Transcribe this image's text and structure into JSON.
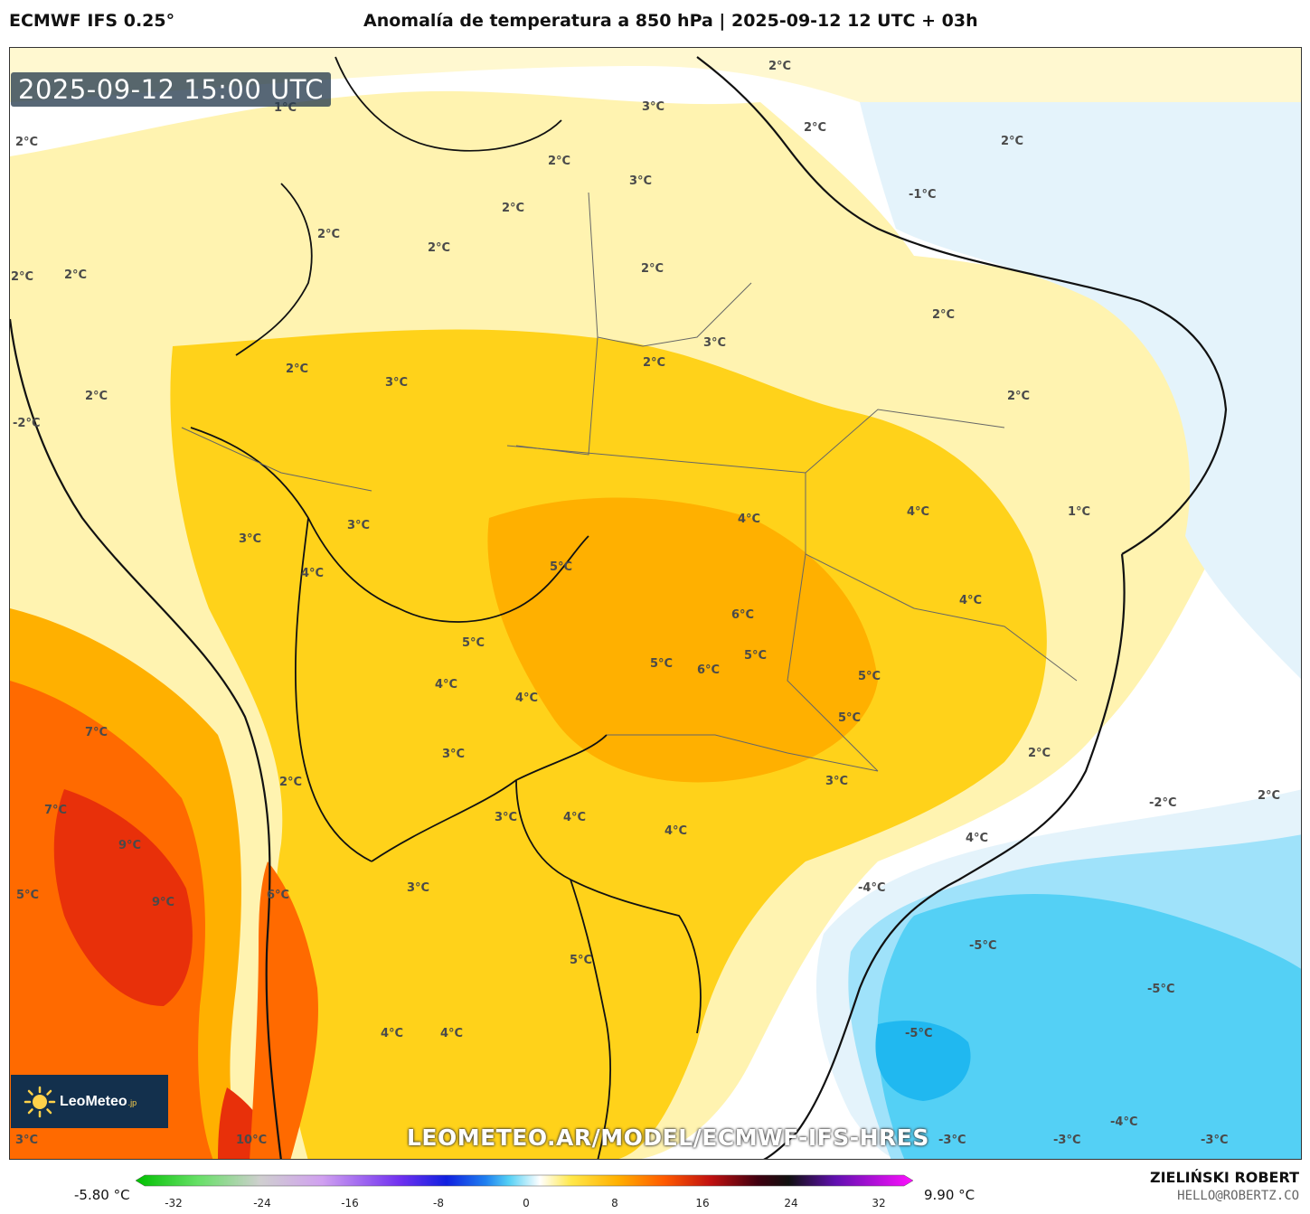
{
  "header": {
    "model": "ECMWF IFS 0.25°",
    "title": "Anomalía de temperatura a 850 hPa | 2025-09-12 12 UTC + 03h"
  },
  "map": {
    "timestamp": "2025-09-12 15:00 UTC",
    "watermark": "LEOMETEO.AR/MODEL/ECMWF-IFS-HRES",
    "logo_text": "LeoMeteo",
    "logo_suffix": ".jp",
    "region": "South America (Brazil centered)",
    "labels": [
      "1°C",
      "2°C",
      "2°C",
      "2°C",
      "2°C",
      "3°C",
      "3°C",
      "2°C",
      "2°C",
      "2°C",
      "2°C",
      "2°C",
      "-1°C",
      "2°C",
      "3°C",
      "2°C",
      "2°C",
      "2°C",
      "2°C",
      "3°C",
      "-2°C",
      "2°C",
      "2°C",
      "1°C",
      "4°C",
      "3°C",
      "3°C",
      "4°C",
      "5°C",
      "4°C",
      "4°C",
      "6°C",
      "5°C",
      "5°C",
      "6°C",
      "5°C",
      "5°C",
      "4°C",
      "4°C",
      "5°C",
      "2°C",
      "3°C",
      "2°C",
      "3°C",
      "-2°C",
      "2°C",
      "7°C",
      "7°C",
      "9°C",
      "9°C",
      "5°C",
      "6°C",
      "3°C",
      "3°C",
      "4°C",
      "4°C",
      "4°C",
      "-4°C",
      "-5°C",
      "-5°C",
      "-5°C",
      "-4°C",
      "4°C",
      "4°C",
      "5°C",
      "10°C",
      "3°C",
      "-3°C",
      "-3°C",
      "-3°C"
    ],
    "label_units": "°C"
  },
  "legend": {
    "min_value": "-5.80 °C",
    "max_value": "9.90 °C",
    "ticks": [
      "-32",
      "-24",
      "-16",
      "-8",
      "0",
      "8",
      "16",
      "24",
      "32"
    ],
    "colors": {
      "land_warm": "#ffd21a",
      "warm_mid": "#ffb000",
      "hot": "#ff6a00",
      "very_hot": "#e8300a",
      "cold": "#54d0f5",
      "very_cold": "#20b8f0",
      "neutral": "#ffffff",
      "pale_yellow": "#fff3b0",
      "pale_blue": "#e4f3fb"
    }
  },
  "footer": {
    "author": "ZIELIŃSKI ROBERT",
    "contact": "HELLO@ROBERTZ.CO"
  }
}
